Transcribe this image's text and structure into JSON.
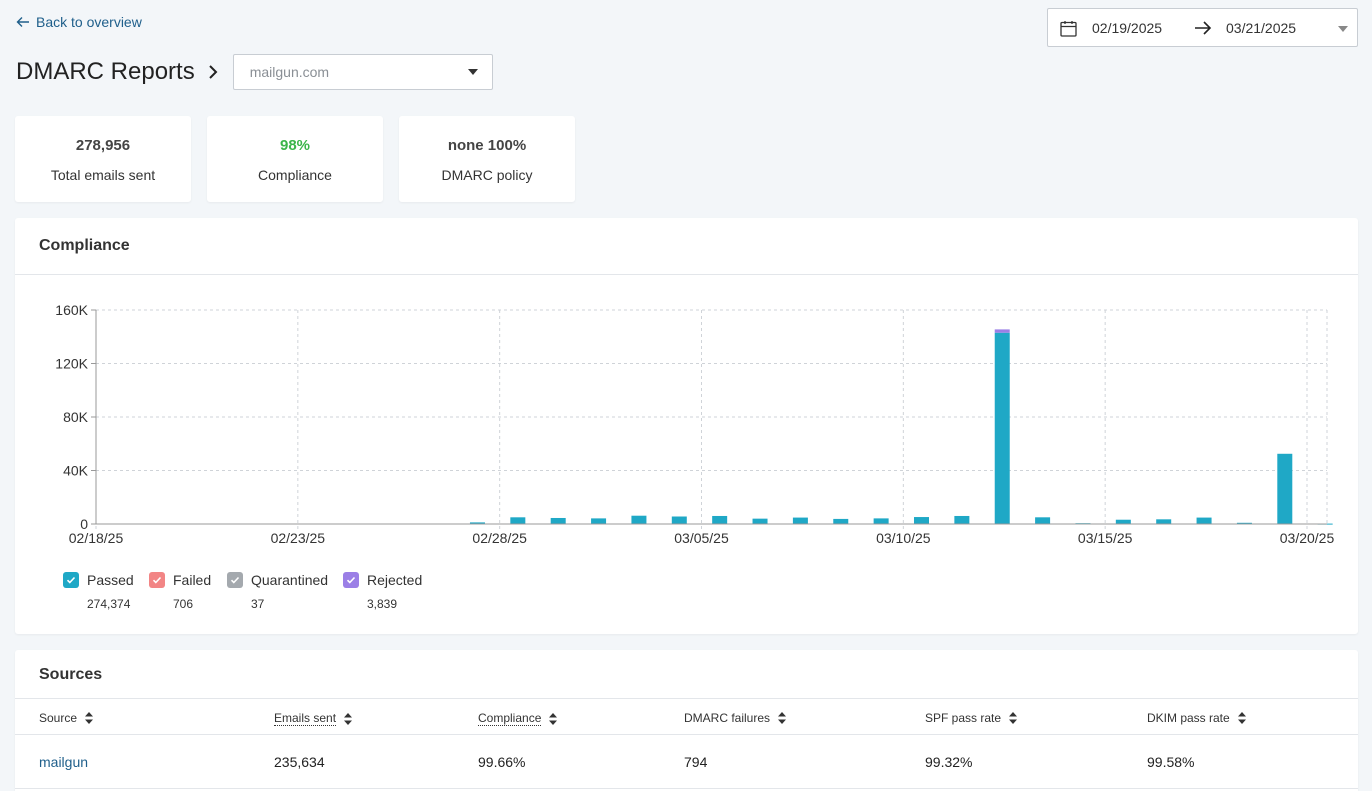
{
  "nav": {
    "back_label": "Back to overview"
  },
  "header": {
    "title": "DMARC Reports",
    "domain_value": "mailgun.com"
  },
  "date_range": {
    "start": "02/19/2025",
    "end": "03/21/2025"
  },
  "stats": [
    {
      "value": "278,956",
      "label": "Total emails sent"
    },
    {
      "value": "98%",
      "label": "Compliance",
      "color": "#3bb54a"
    },
    {
      "value": "none 100%",
      "label": "DMARC policy"
    }
  ],
  "compliance": {
    "title": "Compliance"
  },
  "legend": [
    {
      "label": "Passed",
      "count": "274,374",
      "color": "#1fa8c6"
    },
    {
      "label": "Failed",
      "count": "706",
      "color": "#f28585"
    },
    {
      "label": "Quarantined",
      "count": "37",
      "color": "#a4a9ae"
    },
    {
      "label": "Rejected",
      "count": "3,839",
      "color": "#9b7fe6"
    }
  ],
  "chart_data": {
    "type": "bar",
    "stacked": true,
    "y_ticks": [
      "0",
      "40K",
      "80K",
      "120K",
      "160K"
    ],
    "ylim": [
      0,
      160000
    ],
    "x_ticks": [
      "02/18/25",
      "02/23/25",
      "02/28/25",
      "03/05/25",
      "03/10/25",
      "03/15/25",
      "03/20/25"
    ],
    "categories": [
      "02/19/25",
      "02/20/25",
      "02/21/25",
      "02/22/25",
      "02/23/25",
      "02/24/25",
      "02/25/25",
      "02/26/25",
      "02/27/25",
      "02/28/25",
      "03/01/25",
      "03/02/25",
      "03/03/25",
      "03/04/25",
      "03/05/25",
      "03/06/25",
      "03/07/25",
      "03/08/25",
      "03/09/25",
      "03/10/25",
      "03/11/25",
      "03/12/25",
      "03/13/25",
      "03/14/25",
      "03/15/25",
      "03/16/25",
      "03/17/25",
      "03/18/25",
      "03/19/25",
      "03/20/25"
    ],
    "series": [
      {
        "name": "Passed",
        "values": [
          0,
          0,
          0,
          0,
          0,
          0,
          0,
          0,
          1200,
          5000,
          4500,
          4200,
          6200,
          5600,
          6000,
          4000,
          4800,
          3800,
          4200,
          5200,
          6000,
          143000,
          5000,
          600,
          3200,
          3500,
          4800,
          900,
          52500,
          300
        ]
      },
      {
        "name": "Failed",
        "values": [
          0,
          0,
          0,
          0,
          0,
          0,
          0,
          0,
          0,
          0,
          0,
          0,
          0,
          0,
          0,
          0,
          0,
          0,
          0,
          0,
          0,
          0,
          0,
          0,
          0,
          0,
          0,
          0,
          0,
          0
        ]
      },
      {
        "name": "Quarantined",
        "values": [
          0,
          0,
          0,
          0,
          0,
          0,
          0,
          0,
          0,
          0,
          0,
          0,
          0,
          0,
          0,
          0,
          0,
          0,
          0,
          0,
          0,
          0,
          0,
          0,
          0,
          0,
          0,
          0,
          0,
          0
        ]
      },
      {
        "name": "Rejected",
        "values": [
          0,
          0,
          0,
          0,
          0,
          0,
          0,
          0,
          0,
          0,
          0,
          0,
          0,
          0,
          0,
          0,
          0,
          0,
          0,
          0,
          0,
          2500,
          0,
          0,
          0,
          0,
          0,
          0,
          0,
          0
        ]
      }
    ],
    "grid": true
  },
  "sources": {
    "title": "Sources",
    "columns": [
      "Source",
      "Emails sent",
      "Compliance",
      "DMARC failures",
      "SPF pass rate",
      "DKIM pass rate"
    ],
    "rows": [
      [
        "mailgun",
        "235,634",
        "99.66%",
        "794",
        "99.32%",
        "99.58%"
      ]
    ]
  }
}
